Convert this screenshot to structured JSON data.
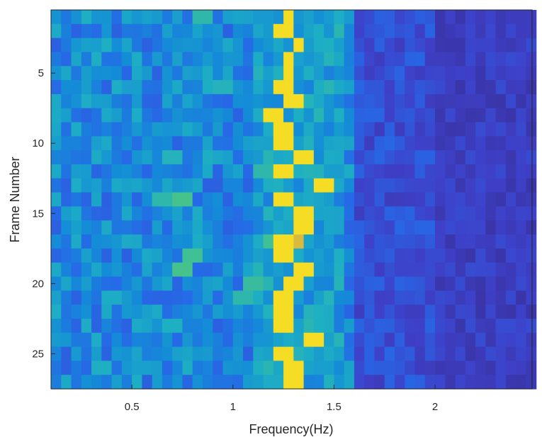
{
  "chart_data": {
    "type": "heatmap",
    "title": "",
    "xlabel": "Frequency(Hz)",
    "ylabel": "Frame Number",
    "xlim": [
      0.1,
      2.48
    ],
    "ylim": [
      0.5,
      27.5
    ],
    "y_reversed": true,
    "xticks": [
      0.5,
      1,
      1.5,
      2
    ],
    "xtick_labels": [
      "0.5",
      "1",
      "1.5",
      "2"
    ],
    "yticks": [
      5,
      10,
      15,
      20,
      25
    ],
    "ytick_labels": [
      "5",
      "10",
      "15",
      "20",
      "25"
    ],
    "colormap": "parula",
    "n_frames": 27,
    "freq_bin_width_hz": 0.05,
    "peak_frequency_hz_per_frame": [
      1.28,
      1.25,
      1.33,
      1.28,
      1.28,
      1.25,
      1.3,
      1.2,
      1.25,
      1.25,
      1.35,
      1.25,
      1.45,
      1.25,
      1.35,
      1.35,
      1.25,
      1.25,
      1.35,
      1.3,
      1.25,
      1.25,
      1.25,
      1.4,
      1.25,
      1.3,
      1.3
    ],
    "secondary_peaks": [
      {
        "frame": 7,
        "freq": 1.3,
        "level": 0.9
      },
      {
        "frame": 17,
        "freq": 1.3,
        "level": 0.85
      },
      {
        "frame": 17,
        "freq": 1.2,
        "level": 0.6
      },
      {
        "frame": 18,
        "freq": 0.8,
        "level": 0.6
      },
      {
        "frame": 19,
        "freq": 0.75,
        "level": 0.62
      },
      {
        "frame": 14,
        "freq": 0.75,
        "level": 0.62
      },
      {
        "frame": 14,
        "freq": 0.65,
        "level": 0.55
      },
      {
        "frame": 12,
        "freq": 1.15,
        "level": 0.55
      },
      {
        "frame": 21,
        "freq": 1.05,
        "level": 0.55
      },
      {
        "frame": 20,
        "freq": 1.1,
        "level": 0.58
      },
      {
        "frame": 6,
        "freq": 0.95,
        "level": 0.52
      },
      {
        "frame": 11,
        "freq": 0.7,
        "level": 0.52
      },
      {
        "frame": 1,
        "freq": 0.85,
        "level": 0.55
      },
      {
        "frame": 23,
        "freq": 0.7,
        "level": 0.5
      },
      {
        "frame": 26,
        "freq": 0.35,
        "level": 0.5
      }
    ],
    "value_range": [
      0,
      1
    ]
  }
}
